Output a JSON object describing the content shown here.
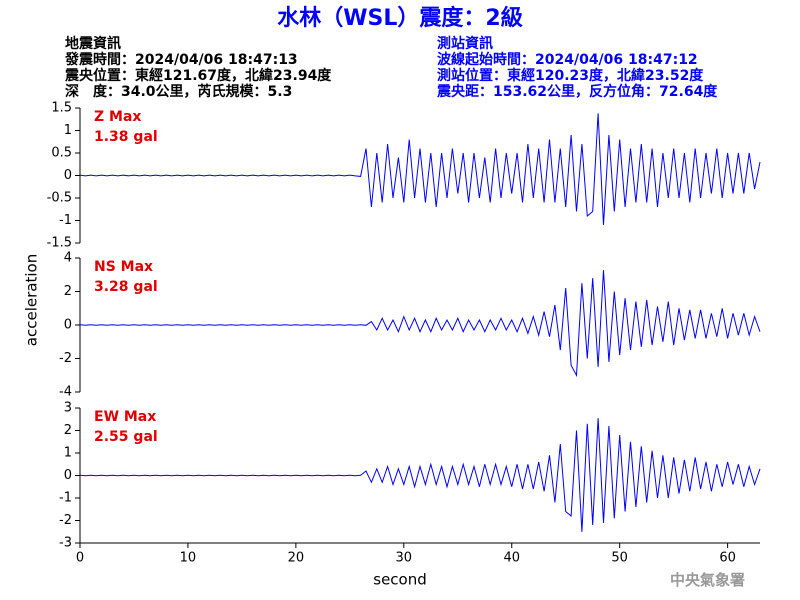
{
  "title": "水林（WSL）震度：2級",
  "info_left": [
    "地震資訊",
    "發震時間：2024/04/06 18:47:13",
    "震央位置：東經121.67度，北緯23.94度",
    "深　度：34.0公里，芮氏規模：5.3"
  ],
  "info_right": [
    "測站資訊",
    "波線起始時間：2024/04/06 18:47:12",
    "測站位置：東經120.23度，北緯23.52度",
    "震央距：153.62公里，反方位角：72.64度"
  ],
  "footer": "中央氣象署",
  "chart_data": [
    {
      "type": "line",
      "annotation": [
        "Z Max",
        "1.38 gal"
      ],
      "xlim": [
        0,
        63
      ],
      "ylim": [
        -1.5,
        1.5
      ],
      "yticks": [
        -1.5,
        -1,
        -0.5,
        0,
        0.5,
        1,
        1.5
      ],
      "x": [
        0,
        0.5,
        1,
        1.5,
        2,
        2.5,
        3,
        3.5,
        4,
        4.5,
        5,
        5.5,
        6,
        6.5,
        7,
        7.5,
        8,
        8.5,
        9,
        9.5,
        10,
        10.5,
        11,
        11.5,
        12,
        12.5,
        13,
        13.5,
        14,
        14.5,
        15,
        15.5,
        16,
        16.5,
        17,
        17.5,
        18,
        18.5,
        19,
        19.5,
        20,
        20.5,
        21,
        21.5,
        22,
        22.5,
        23,
        23.5,
        24,
        24.5,
        25,
        25.5,
        26,
        26.5,
        27,
        27.5,
        28,
        28.5,
        29,
        29.5,
        30,
        30.5,
        31,
        31.5,
        32,
        32.5,
        33,
        33.5,
        34,
        34.5,
        35,
        35.5,
        36,
        36.5,
        37,
        37.5,
        38,
        38.5,
        39,
        39.5,
        40,
        40.5,
        41,
        41.5,
        42,
        42.5,
        43,
        43.5,
        44,
        44.5,
        45,
        45.5,
        46,
        46.5,
        47,
        47.5,
        48,
        48.5,
        49,
        49.5,
        50,
        50.5,
        51,
        51.5,
        52,
        52.5,
        53,
        53.5,
        54,
        54.5,
        55,
        55.5,
        56,
        56.5,
        57,
        57.5,
        58,
        58.5,
        59,
        59.5,
        60,
        60.5,
        61,
        61.5,
        62,
        62.5,
        63
      ],
      "series": [
        {
          "color": "#0000ff",
          "values": [
            0.01,
            -0.01,
            0.01,
            -0.01,
            0.01,
            -0.01,
            0.01,
            -0.01,
            0.01,
            -0.01,
            0.01,
            -0.01,
            0.01,
            -0.01,
            0.01,
            -0.01,
            0.01,
            -0.01,
            0.01,
            -0.01,
            0.01,
            -0.01,
            0.01,
            -0.01,
            0.01,
            -0.01,
            0.01,
            -0.01,
            0.01,
            -0.01,
            0.01,
            -0.01,
            0.01,
            -0.01,
            0.01,
            -0.01,
            0.01,
            -0.01,
            0.01,
            -0.01,
            0.01,
            -0.01,
            0.01,
            -0.01,
            0.01,
            -0.01,
            0.01,
            -0.01,
            0.01,
            -0.01,
            0.01,
            -0.01,
            -0.02,
            0.6,
            -0.7,
            0.5,
            -0.6,
            0.7,
            -0.5,
            0.4,
            -0.6,
            0.8,
            -0.5,
            0.6,
            -0.6,
            0.5,
            -0.7,
            0.5,
            -0.5,
            0.6,
            -0.4,
            0.5,
            -0.6,
            0.5,
            -0.5,
            0.4,
            -0.6,
            0.6,
            -0.5,
            0.5,
            -0.4,
            0.5,
            -0.6,
            0.7,
            -0.5,
            0.6,
            -0.6,
            0.8,
            -0.6,
            0.6,
            -0.7,
            0.9,
            -0.8,
            0.7,
            -0.9,
            -0.8,
            1.38,
            -1.1,
            0.9,
            -0.8,
            0.8,
            -0.7,
            0.6,
            -0.6,
            0.7,
            -0.6,
            0.6,
            -0.7,
            0.5,
            -0.5,
            0.6,
            -0.5,
            0.5,
            -0.6,
            0.6,
            -0.5,
            0.5,
            -0.4,
            0.6,
            -0.5,
            0.5,
            -0.4,
            0.5,
            -0.4,
            0.5,
            -0.3,
            0.3
          ]
        }
      ]
    },
    {
      "type": "line",
      "annotation": [
        "NS Max",
        "3.28 gal"
      ],
      "ylabel": "acceleration",
      "xlim": [
        0,
        63
      ],
      "ylim": [
        -4,
        4
      ],
      "yticks": [
        -4,
        -2,
        0,
        2,
        4
      ],
      "x": [
        0,
        0.5,
        1,
        1.5,
        2,
        2.5,
        3,
        3.5,
        4,
        4.5,
        5,
        5.5,
        6,
        6.5,
        7,
        7.5,
        8,
        8.5,
        9,
        9.5,
        10,
        10.5,
        11,
        11.5,
        12,
        12.5,
        13,
        13.5,
        14,
        14.5,
        15,
        15.5,
        16,
        16.5,
        17,
        17.5,
        18,
        18.5,
        19,
        19.5,
        20,
        20.5,
        21,
        21.5,
        22,
        22.5,
        23,
        23.5,
        24,
        24.5,
        25,
        25.5,
        26,
        26.5,
        27,
        27.5,
        28,
        28.5,
        29,
        29.5,
        30,
        30.5,
        31,
        31.5,
        32,
        32.5,
        33,
        33.5,
        34,
        34.5,
        35,
        35.5,
        36,
        36.5,
        37,
        37.5,
        38,
        38.5,
        39,
        39.5,
        40,
        40.5,
        41,
        41.5,
        42,
        42.5,
        43,
        43.5,
        44,
        44.5,
        45,
        45.5,
        46,
        46.5,
        47,
        47.5,
        48,
        48.5,
        49,
        49.5,
        50,
        50.5,
        51,
        51.5,
        52,
        52.5,
        53,
        53.5,
        54,
        54.5,
        55,
        55.5,
        56,
        56.5,
        57,
        57.5,
        58,
        58.5,
        59,
        59.5,
        60,
        60.5,
        61,
        61.5,
        62,
        62.5,
        63
      ],
      "series": [
        {
          "color": "#0000ff",
          "values": [
            0.02,
            -0.02,
            0.02,
            -0.02,
            0.02,
            -0.02,
            0.02,
            -0.02,
            0.02,
            -0.02,
            0.02,
            -0.02,
            0.02,
            -0.02,
            0.02,
            -0.02,
            0.02,
            -0.02,
            0.02,
            -0.02,
            0.02,
            -0.02,
            0.02,
            -0.02,
            0.02,
            -0.02,
            0.02,
            -0.02,
            0.02,
            -0.02,
            0.02,
            -0.02,
            0.02,
            -0.02,
            0.02,
            -0.02,
            0.02,
            -0.02,
            0.02,
            -0.02,
            0.02,
            -0.02,
            0.02,
            -0.02,
            0.02,
            -0.02,
            0.02,
            -0.02,
            0.02,
            -0.02,
            0.02,
            -0.02,
            0.02,
            -0.02,
            0.2,
            -0.3,
            0.4,
            -0.3,
            0.3,
            -0.4,
            0.5,
            -0.3,
            0.4,
            -0.4,
            0.3,
            -0.4,
            0.4,
            -0.3,
            0.3,
            -0.3,
            0.4,
            -0.4,
            0.3,
            -0.3,
            0.3,
            -0.4,
            0.3,
            -0.3,
            0.4,
            -0.3,
            0.3,
            -0.4,
            0.4,
            -0.5,
            0.5,
            -0.6,
            0.8,
            -0.7,
            1.2,
            -1.5,
            2.2,
            -2.4,
            -3.0,
            2.5,
            -2.0,
            2.8,
            -2.5,
            3.28,
            -2.2,
            2.0,
            -1.8,
            1.6,
            -1.5,
            1.4,
            -1.3,
            1.5,
            -1.2,
            1.1,
            -1.0,
            1.4,
            -1.2,
            1.0,
            -0.9,
            0.9,
            -0.8,
            0.9,
            -0.8,
            0.7,
            -0.7,
            1.0,
            -0.8,
            0.7,
            -0.6,
            0.7,
            -0.6,
            0.5,
            -0.4
          ]
        }
      ]
    },
    {
      "type": "line",
      "annotation": [
        "EW Max",
        "2.55 gal"
      ],
      "xlabel": "second",
      "xlim": [
        0,
        63
      ],
      "xticks": [
        0,
        10,
        20,
        30,
        40,
        50,
        60
      ],
      "ylim": [
        -3,
        3
      ],
      "yticks": [
        -3,
        -2,
        -1,
        0,
        1,
        2,
        3
      ],
      "x": [
        0,
        0.5,
        1,
        1.5,
        2,
        2.5,
        3,
        3.5,
        4,
        4.5,
        5,
        5.5,
        6,
        6.5,
        7,
        7.5,
        8,
        8.5,
        9,
        9.5,
        10,
        10.5,
        11,
        11.5,
        12,
        12.5,
        13,
        13.5,
        14,
        14.5,
        15,
        15.5,
        16,
        16.5,
        17,
        17.5,
        18,
        18.5,
        19,
        19.5,
        20,
        20.5,
        21,
        21.5,
        22,
        22.5,
        23,
        23.5,
        24,
        24.5,
        25,
        25.5,
        26,
        26.5,
        27,
        27.5,
        28,
        28.5,
        29,
        29.5,
        30,
        30.5,
        31,
        31.5,
        32,
        32.5,
        33,
        33.5,
        34,
        34.5,
        35,
        35.5,
        36,
        36.5,
        37,
        37.5,
        38,
        38.5,
        39,
        39.5,
        40,
        40.5,
        41,
        41.5,
        42,
        42.5,
        43,
        43.5,
        44,
        44.5,
        45,
        45.5,
        46,
        46.5,
        47,
        47.5,
        48,
        48.5,
        49,
        49.5,
        50,
        50.5,
        51,
        51.5,
        52,
        52.5,
        53,
        53.5,
        54,
        54.5,
        55,
        55.5,
        56,
        56.5,
        57,
        57.5,
        58,
        58.5,
        59,
        59.5,
        60,
        60.5,
        61,
        61.5,
        62,
        62.5,
        63
      ],
      "series": [
        {
          "color": "#0000ff",
          "values": [
            0.01,
            -0.01,
            0.01,
            -0.01,
            0.01,
            -0.01,
            0.01,
            -0.01,
            0.01,
            -0.01,
            0.01,
            -0.01,
            0.01,
            -0.01,
            0.01,
            -0.01,
            0.01,
            -0.01,
            0.01,
            -0.01,
            0.01,
            -0.01,
            0.01,
            -0.01,
            0.01,
            -0.01,
            0.01,
            -0.01,
            0.01,
            -0.01,
            0.01,
            -0.01,
            0.01,
            -0.01,
            0.01,
            -0.01,
            0.01,
            -0.01,
            0.01,
            -0.01,
            0.01,
            -0.01,
            0.01,
            -0.01,
            0.01,
            -0.01,
            0.01,
            -0.01,
            0.01,
            -0.01,
            0.01,
            -0.01,
            0.01,
            0.2,
            -0.3,
            0.3,
            -0.3,
            0.4,
            -0.4,
            0.3,
            -0.4,
            0.4,
            -0.5,
            0.4,
            -0.4,
            0.5,
            -0.4,
            0.4,
            -0.5,
            0.4,
            -0.4,
            0.5,
            -0.4,
            0.4,
            -0.5,
            0.5,
            -0.4,
            0.5,
            -0.4,
            0.4,
            -0.5,
            0.5,
            -0.6,
            0.5,
            -0.6,
            0.6,
            -0.7,
            0.9,
            -1.2,
            1.4,
            -1.6,
            -1.8,
            2.0,
            -2.5,
            2.3,
            -2.2,
            2.55,
            -2.1,
            2.2,
            -1.9,
            1.8,
            -1.6,
            1.5,
            -1.4,
            1.3,
            -1.2,
            1.1,
            -1.0,
            0.9,
            -1.0,
            0.8,
            -0.8,
            0.7,
            -0.7,
            0.8,
            -0.6,
            0.6,
            -0.7,
            0.5,
            -0.5,
            0.6,
            -0.4,
            0.5,
            -0.5,
            0.4,
            -0.4,
            0.3
          ]
        }
      ]
    }
  ]
}
